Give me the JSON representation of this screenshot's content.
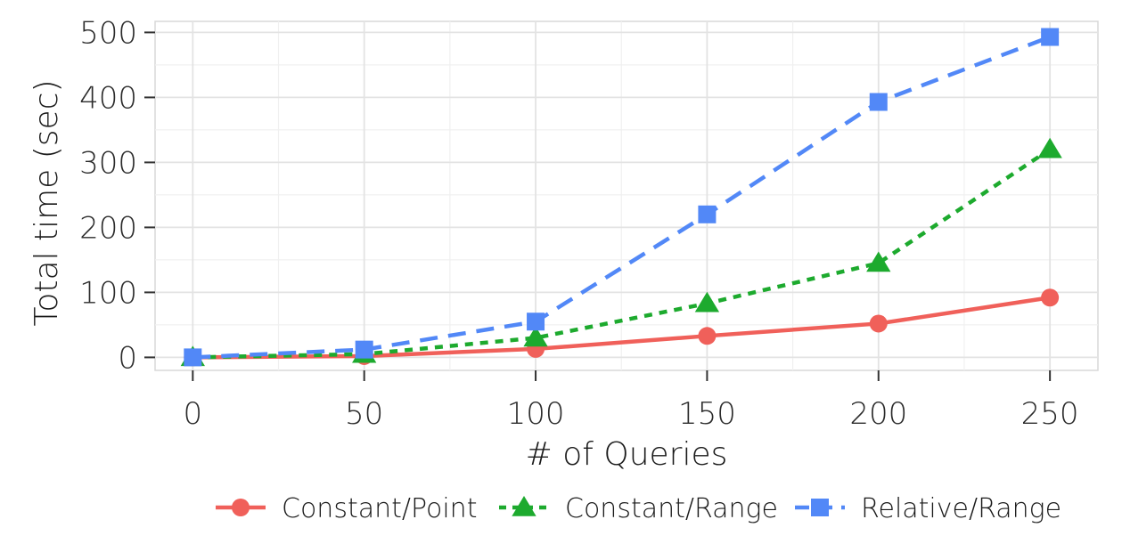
{
  "chart_data": {
    "type": "line",
    "title": "",
    "xlabel": "# of Queries",
    "ylabel": "Total time (sec)",
    "x": [
      0,
      50,
      100,
      150,
      200,
      250
    ],
    "xlim": [
      -11,
      264
    ],
    "ylim": [
      -20,
      517
    ],
    "xticks": [
      0,
      50,
      100,
      150,
      200,
      250
    ],
    "yticks": [
      0,
      100,
      200,
      300,
      400,
      500
    ],
    "grid": true,
    "legend_position": "bottom",
    "series": [
      {
        "name": "Constant/Point",
        "color": "#F0605A",
        "marker": "circle",
        "line_style": "solid",
        "values": [
          0,
          2,
          13,
          33,
          52,
          92
        ]
      },
      {
        "name": "Constant/Range",
        "color": "#1DAA2E",
        "marker": "triangle",
        "line_style": "dotted",
        "values": [
          0,
          5,
          30,
          83,
          145,
          320
        ]
      },
      {
        "name": "Relative/Range",
        "color": "#5288F7",
        "marker": "square",
        "line_style": "dashed",
        "values": [
          0,
          12,
          55,
          220,
          393,
          493
        ]
      }
    ]
  }
}
